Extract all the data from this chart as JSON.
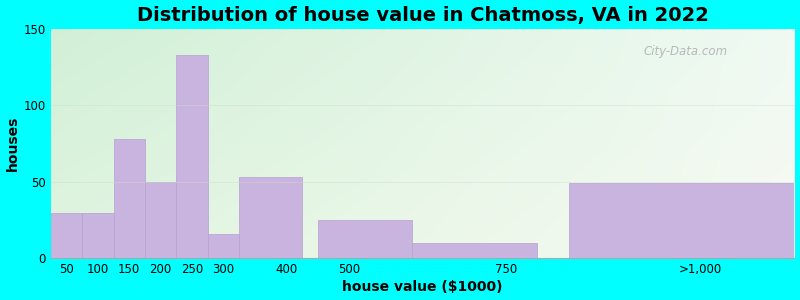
{
  "title": "Distribution of house value in Chatmoss, VA in 2022",
  "xlabel": "house value ($1000)",
  "ylabel": "houses",
  "categories": [
    "50",
    "100",
    "150",
    "200",
    "250",
    "300",
    "400",
    "500",
    "750",
    ">1,000"
  ],
  "values": [
    30,
    30,
    78,
    50,
    133,
    16,
    53,
    25,
    10,
    49
  ],
  "bar_color": "#c9b4e0",
  "bar_edge_color": "#b8a0d0",
  "ylim": [
    0,
    150
  ],
  "yticks": [
    0,
    50,
    100,
    150
  ],
  "outer_bg": "#00ffff",
  "title_fontsize": 14,
  "axis_label_fontsize": 10,
  "watermark": "City-Data.com",
  "xlim_left": 25,
  "xlim_right": 1210,
  "bar_positions": [
    25,
    75,
    125,
    175,
    225,
    275,
    325,
    450,
    600,
    850
  ],
  "bar_widths": [
    50,
    50,
    50,
    50,
    50,
    50,
    100,
    150,
    200,
    360
  ]
}
